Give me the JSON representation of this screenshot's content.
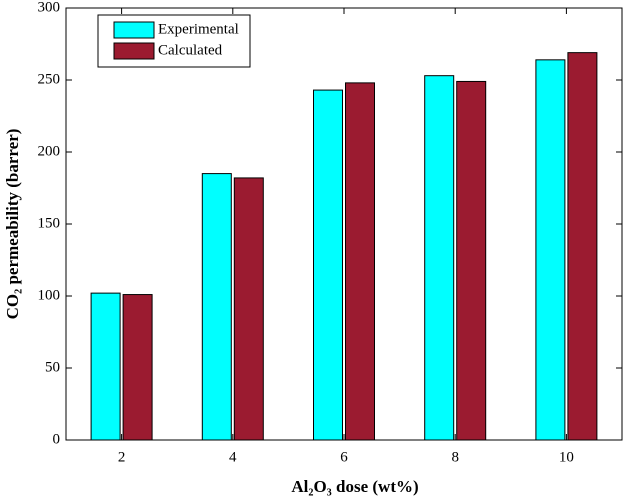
{
  "chart_data": {
    "type": "bar",
    "categories": [
      2,
      4,
      6,
      8,
      10
    ],
    "series": [
      {
        "name": "Experimental",
        "color": "#00ffff",
        "values": [
          102,
          185,
          243,
          253,
          264
        ]
      },
      {
        "name": "Calculated",
        "color": "#9b1b30",
        "values": [
          101,
          182,
          248,
          249,
          269
        ]
      }
    ],
    "ylim": [
      0,
      300
    ],
    "yticks": [
      0,
      50,
      100,
      150,
      200,
      250,
      300
    ],
    "xlabel": "Al₂O₃ dose (wt%)",
    "ylabel": "CO₂ permeability (barrer)",
    "legend": "upper left"
  }
}
